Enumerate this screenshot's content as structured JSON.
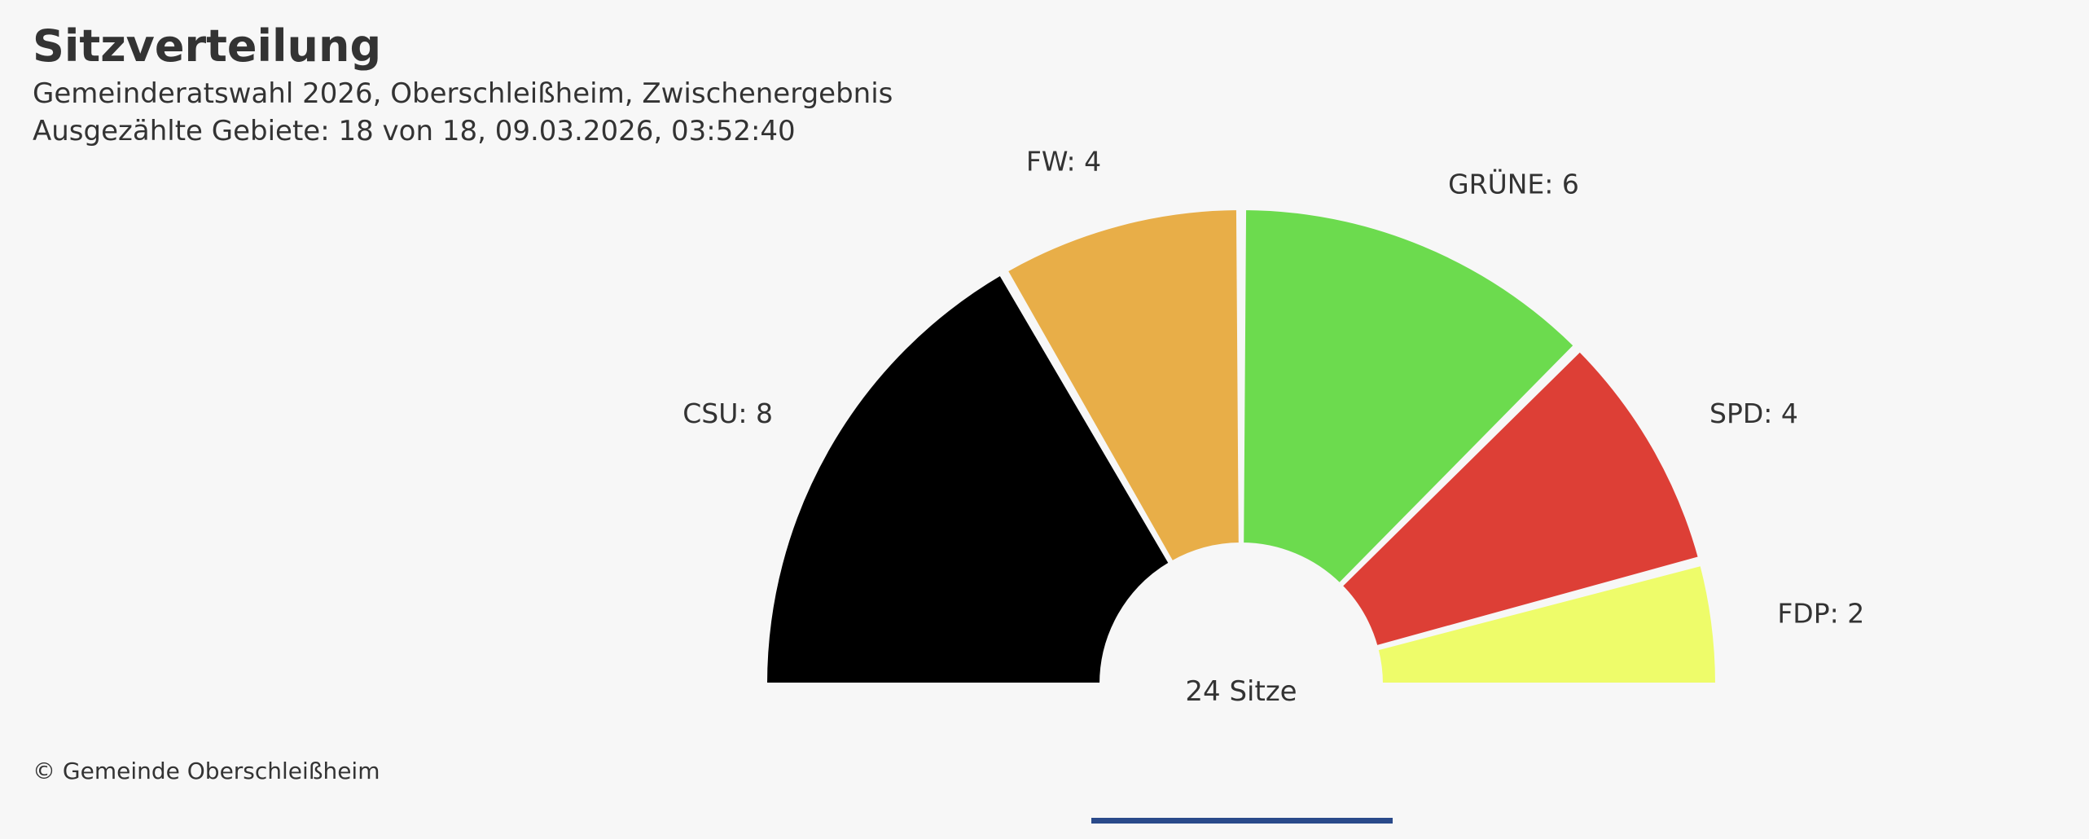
{
  "header": {
    "title": "Sitzverteilung",
    "subtitle": "Gemeinderatswahl 2026, Oberschleißheim, Zwischenergebnis",
    "status": "Ausgezählte Gebiete: 18 von 18, 09.03.2026, 03:52:40"
  },
  "chart_data": {
    "type": "pie",
    "subtype": "semicircle-parliament",
    "center_label": "24 Sitze",
    "total_seats": 24,
    "slices": [
      {
        "name": "CSU",
        "label": "CSU: 8",
        "value": 8,
        "color": "#000000"
      },
      {
        "name": "FW",
        "label": "FW: 4",
        "value": 4,
        "color": "#e8ae48"
      },
      {
        "name": "GRÜNE",
        "label": "GRÜNE: 6",
        "value": 6,
        "color": "#6cdb4e"
      },
      {
        "name": "SPD",
        "label": "SPD: 4",
        "value": 4,
        "color": "#dd3f36"
      },
      {
        "name": "FDP",
        "label": "FDP: 2",
        "value": 2,
        "color": "#eefc6a"
      }
    ]
  },
  "footer": {
    "credit": "© Gemeinde Oberschleißheim"
  }
}
